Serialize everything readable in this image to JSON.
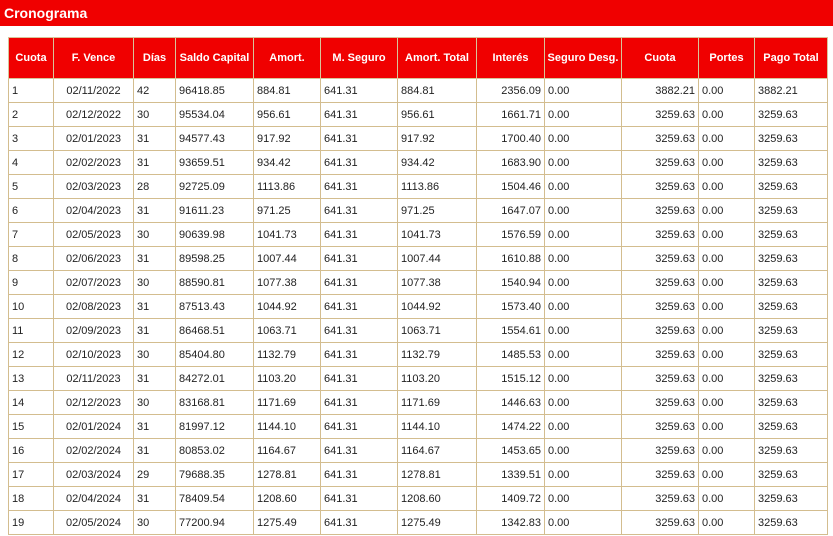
{
  "header": {
    "title": "Cronograma"
  },
  "table": {
    "columns": [
      "Cuota",
      "F. Vence",
      "Días",
      "Saldo Capital",
      "Amort.",
      "M. Seguro",
      "Amort. Total",
      "Interés",
      "Seguro Desg.",
      "Cuota",
      "Portes",
      "Pago Total"
    ],
    "rows": [
      [
        "1",
        "02/11/2022",
        "42",
        "96418.85",
        "884.81",
        "641.31",
        "884.81",
        "2356.09",
        "0.00",
        "3882.21",
        "0.00",
        "3882.21"
      ],
      [
        "2",
        "02/12/2022",
        "30",
        "95534.04",
        "956.61",
        "641.31",
        "956.61",
        "1661.71",
        "0.00",
        "3259.63",
        "0.00",
        "3259.63"
      ],
      [
        "3",
        "02/01/2023",
        "31",
        "94577.43",
        "917.92",
        "641.31",
        "917.92",
        "1700.40",
        "0.00",
        "3259.63",
        "0.00",
        "3259.63"
      ],
      [
        "4",
        "02/02/2023",
        "31",
        "93659.51",
        "934.42",
        "641.31",
        "934.42",
        "1683.90",
        "0.00",
        "3259.63",
        "0.00",
        "3259.63"
      ],
      [
        "5",
        "02/03/2023",
        "28",
        "92725.09",
        "1113.86",
        "641.31",
        "1113.86",
        "1504.46",
        "0.00",
        "3259.63",
        "0.00",
        "3259.63"
      ],
      [
        "6",
        "02/04/2023",
        "31",
        "91611.23",
        "971.25",
        "641.31",
        "971.25",
        "1647.07",
        "0.00",
        "3259.63",
        "0.00",
        "3259.63"
      ],
      [
        "7",
        "02/05/2023",
        "30",
        "90639.98",
        "1041.73",
        "641.31",
        "1041.73",
        "1576.59",
        "0.00",
        "3259.63",
        "0.00",
        "3259.63"
      ],
      [
        "8",
        "02/06/2023",
        "31",
        "89598.25",
        "1007.44",
        "641.31",
        "1007.44",
        "1610.88",
        "0.00",
        "3259.63",
        "0.00",
        "3259.63"
      ],
      [
        "9",
        "02/07/2023",
        "30",
        "88590.81",
        "1077.38",
        "641.31",
        "1077.38",
        "1540.94",
        "0.00",
        "3259.63",
        "0.00",
        "3259.63"
      ],
      [
        "10",
        "02/08/2023",
        "31",
        "87513.43",
        "1044.92",
        "641.31",
        "1044.92",
        "1573.40",
        "0.00",
        "3259.63",
        "0.00",
        "3259.63"
      ],
      [
        "11",
        "02/09/2023",
        "31",
        "86468.51",
        "1063.71",
        "641.31",
        "1063.71",
        "1554.61",
        "0.00",
        "3259.63",
        "0.00",
        "3259.63"
      ],
      [
        "12",
        "02/10/2023",
        "30",
        "85404.80",
        "1132.79",
        "641.31",
        "1132.79",
        "1485.53",
        "0.00",
        "3259.63",
        "0.00",
        "3259.63"
      ],
      [
        "13",
        "02/11/2023",
        "31",
        "84272.01",
        "1103.20",
        "641.31",
        "1103.20",
        "1515.12",
        "0.00",
        "3259.63",
        "0.00",
        "3259.63"
      ],
      [
        "14",
        "02/12/2023",
        "30",
        "83168.81",
        "1171.69",
        "641.31",
        "1171.69",
        "1446.63",
        "0.00",
        "3259.63",
        "0.00",
        "3259.63"
      ],
      [
        "15",
        "02/01/2024",
        "31",
        "81997.12",
        "1144.10",
        "641.31",
        "1144.10",
        "1474.22",
        "0.00",
        "3259.63",
        "0.00",
        "3259.63"
      ],
      [
        "16",
        "02/02/2024",
        "31",
        "80853.02",
        "1164.67",
        "641.31",
        "1164.67",
        "1453.65",
        "0.00",
        "3259.63",
        "0.00",
        "3259.63"
      ],
      [
        "17",
        "02/03/2024",
        "29",
        "79688.35",
        "1278.81",
        "641.31",
        "1278.81",
        "1339.51",
        "0.00",
        "3259.63",
        "0.00",
        "3259.63"
      ],
      [
        "18",
        "02/04/2024",
        "31",
        "78409.54",
        "1208.60",
        "641.31",
        "1208.60",
        "1409.72",
        "0.00",
        "3259.63",
        "0.00",
        "3259.63"
      ],
      [
        "19",
        "02/05/2024",
        "30",
        "77200.94",
        "1275.49",
        "641.31",
        "1275.49",
        "1342.83",
        "0.00",
        "3259.63",
        "0.00",
        "3259.63"
      ]
    ]
  },
  "colors": {
    "header_bg": "#f00000",
    "header_text": "#ffffff",
    "border": "#d3bd8f"
  }
}
